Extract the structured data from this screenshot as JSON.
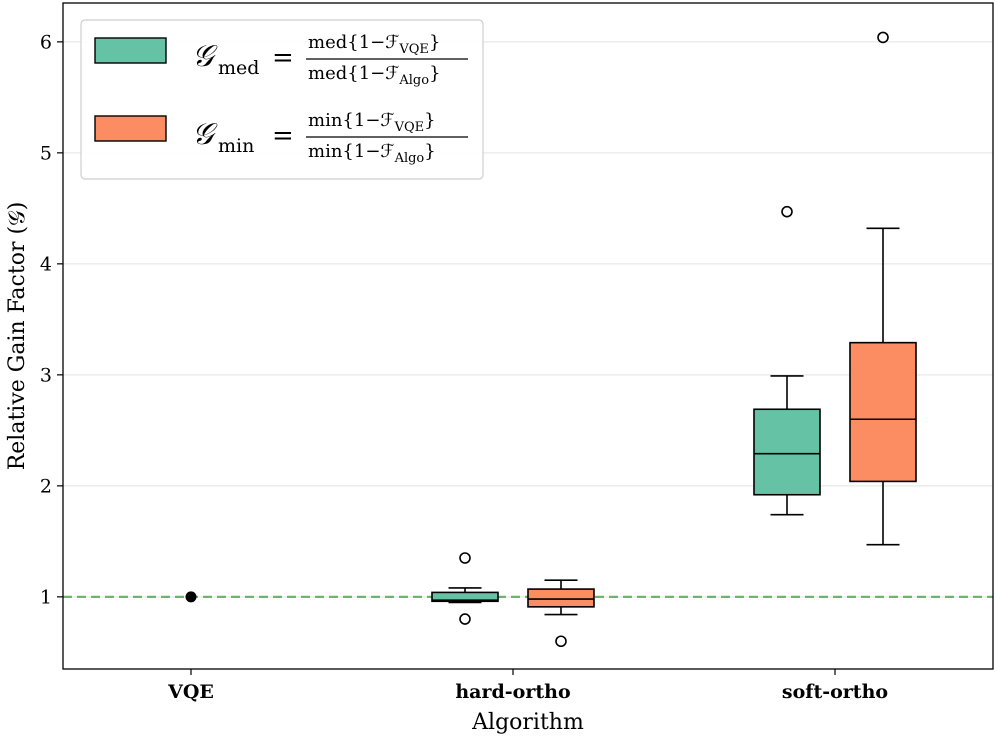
{
  "chart_data": {
    "type": "box",
    "xlabel": "Algorithm",
    "ylabel": "Relative Gain Factor (𝒢)",
    "ylim": [
      0.35,
      6.35
    ],
    "yticks": [
      1,
      2,
      3,
      4,
      5,
      6
    ],
    "grid": "horizontal",
    "reference_line": {
      "y": 1,
      "style": "dashed",
      "color": "#6fb36f"
    },
    "categories": [
      "VQE",
      "hard-ortho",
      "soft-ortho"
    ],
    "series": [
      {
        "name": "G_med",
        "legend": {
          "symbol": "𝒢",
          "sub": "med",
          "num": "med{1−ℱ",
          "num_sub": "VQE",
          "num_end": "}",
          "den": "med{1−ℱ",
          "den_sub": "Algo",
          "den_end": "}"
        },
        "color": "#66c2a5",
        "boxes": [
          null,
          {
            "whislo": 0.95,
            "q1": 0.96,
            "med": 0.97,
            "q3": 1.04,
            "whishi": 1.08,
            "fliers": [
              0.8,
              1.35
            ]
          },
          {
            "whislo": 1.74,
            "q1": 1.92,
            "med": 2.29,
            "q3": 2.69,
            "whishi": 2.99,
            "fliers": [
              4.47
            ]
          }
        ]
      },
      {
        "name": "G_min",
        "legend": {
          "symbol": "𝒢",
          "sub": "min",
          "num": "min{1−ℱ",
          "num_sub": "VQE",
          "num_end": "}",
          "den": "min{1−ℱ",
          "den_sub": "Algo",
          "den_end": "}"
        },
        "color": "#fc8d62",
        "boxes": [
          null,
          {
            "whislo": 0.84,
            "q1": 0.91,
            "med": 0.98,
            "q3": 1.07,
            "whishi": 1.15,
            "fliers": [
              0.6
            ]
          },
          {
            "whislo": 1.47,
            "q1": 2.04,
            "med": 2.6,
            "q3": 3.29,
            "whishi": 4.32,
            "fliers": [
              6.04
            ]
          }
        ]
      }
    ],
    "points": [
      {
        "category": "VQE",
        "y": 1.0
      }
    ]
  }
}
